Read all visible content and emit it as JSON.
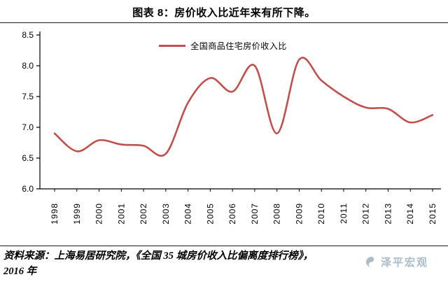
{
  "title": "图表 8：房价收入比近年来有所下降。",
  "legend": "全国商品住宅房价收入比",
  "source": {
    "line1": "资料来源：上海易居研究院，《全国 35 城房价收入比偏离度排行榜》，",
    "line2": "2016 年"
  },
  "watermark": {
    "brand": "泽平宏观"
  },
  "chart_data": {
    "type": "line",
    "title": "图表 8：房价收入比近年来有所下降",
    "categories": [
      "1998",
      "1999",
      "2000",
      "2001",
      "2002",
      "2003",
      "2004",
      "2005",
      "2006",
      "2007",
      "2008",
      "2009",
      "2010",
      "2011",
      "2012",
      "2013",
      "2014",
      "2015"
    ],
    "series": [
      {
        "name": "全国商品住宅房价收入比",
        "values": [
          6.9,
          6.61,
          6.79,
          6.72,
          6.7,
          6.57,
          7.4,
          7.8,
          7.58,
          8.0,
          6.9,
          8.1,
          7.76,
          7.5,
          7.32,
          7.3,
          7.08,
          7.2
        ]
      }
    ],
    "xlabel": "",
    "ylabel": "",
    "ylim": [
      6.0,
      8.5
    ],
    "yticks": [
      8.5,
      8.0,
      7.5,
      7.0,
      6.5,
      6.0
    ],
    "grid": false,
    "legend_position": "top-center",
    "line_color": "#c0504d",
    "axis_color": "#000000"
  }
}
